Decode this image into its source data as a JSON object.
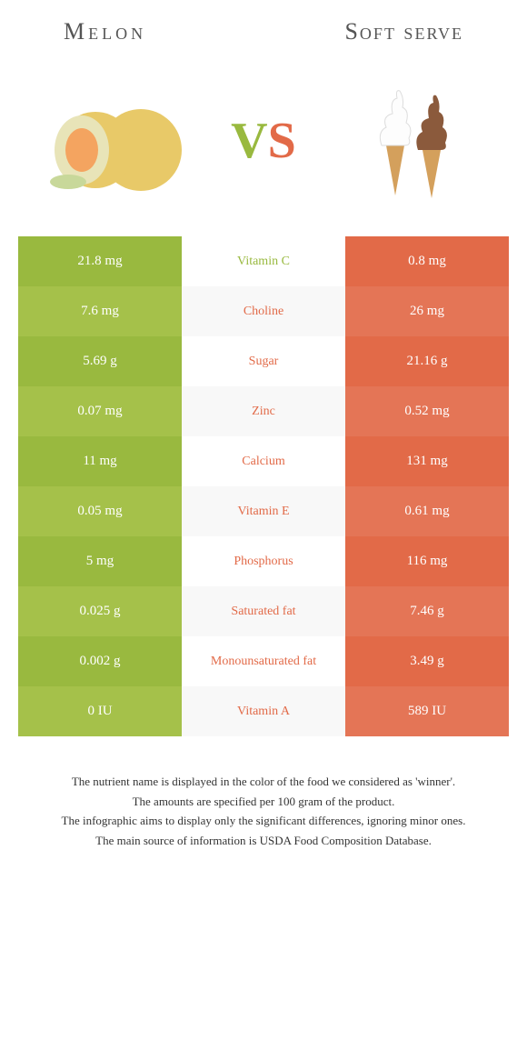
{
  "header": {
    "left_title": "Melon",
    "right_title": "Soft serve"
  },
  "vs": {
    "v": "V",
    "s": "S"
  },
  "colors": {
    "melon_primary": "#99b93f",
    "melon_alt": "#a5c14a",
    "soft_primary": "#e26a48",
    "soft_alt": "#e47556"
  },
  "rows": [
    {
      "label": "Vitamin C",
      "left": "21.8 mg",
      "right": "0.8 mg",
      "winner": "left"
    },
    {
      "label": "Choline",
      "left": "7.6 mg",
      "right": "26 mg",
      "winner": "right"
    },
    {
      "label": "Sugar",
      "left": "5.69 g",
      "right": "21.16 g",
      "winner": "right"
    },
    {
      "label": "Zinc",
      "left": "0.07 mg",
      "right": "0.52 mg",
      "winner": "right"
    },
    {
      "label": "Calcium",
      "left": "11 mg",
      "right": "131 mg",
      "winner": "right"
    },
    {
      "label": "Vitamin E",
      "left": "0.05 mg",
      "right": "0.61 mg",
      "winner": "right"
    },
    {
      "label": "Phosphorus",
      "left": "5 mg",
      "right": "116 mg",
      "winner": "right"
    },
    {
      "label": "Saturated fat",
      "left": "0.025 g",
      "right": "7.46 g",
      "winner": "right"
    },
    {
      "label": "Monounsaturated fat",
      "left": "0.002 g",
      "right": "3.49 g",
      "winner": "right"
    },
    {
      "label": "Vitamin A",
      "left": "0 IU",
      "right": "589 IU",
      "winner": "right"
    }
  ],
  "footer": {
    "line1": "The nutrient name is displayed in the color of the food we considered as 'winner'.",
    "line2": "The amounts are specified per 100 gram of the product.",
    "line3": "The infographic aims to display only the significant differences, ignoring minor ones.",
    "line4": "The main source of information is USDA Food Composition Database."
  }
}
